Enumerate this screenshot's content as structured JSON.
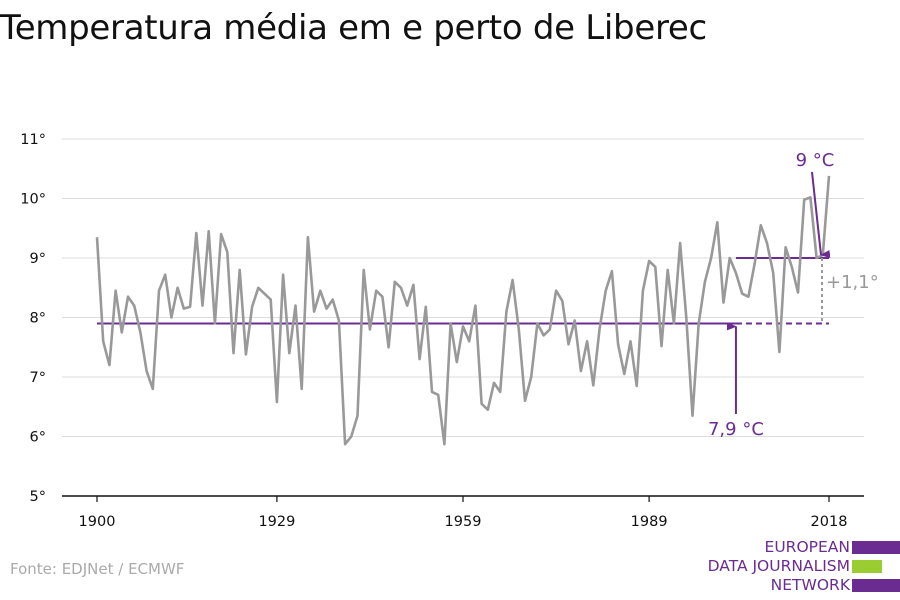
{
  "title": "Temperatura média em e perto de Liberec",
  "source": "Fonte: EDJNet / ECMWF",
  "logo": {
    "lines": [
      "EUROPEAN",
      "DATA JOURNALISM",
      "NETWORK"
    ],
    "colors": [
      "#6b2c91",
      "#9acd32",
      "#6b2c91"
    ]
  },
  "colors": {
    "series": "#999999",
    "accent": "#6b2c91",
    "grid": "#dddddd",
    "axis": "#111111",
    "annotation_gray": "#999999"
  },
  "chart_data": {
    "type": "line",
    "title": "Temperatura média em e perto de Liberec",
    "xlim": [
      1900,
      2018
    ],
    "ylim": [
      5,
      11
    ],
    "x_ticks": [
      1900,
      1929,
      1959,
      1989,
      2018
    ],
    "y_ticks": [
      5,
      6,
      7,
      8,
      9,
      10,
      11
    ],
    "y_tick_labels": [
      "5°",
      "6°",
      "7°",
      "8°",
      "9°",
      "10°",
      "11°"
    ],
    "grid": true,
    "series": [
      {
        "x": [
          1900,
          1901,
          1902,
          1903,
          1904,
          1905,
          1906,
          1907,
          1908,
          1909,
          1910,
          1911,
          1912,
          1913,
          1914,
          1915,
          1916,
          1917,
          1918,
          1919,
          1920,
          1921,
          1922,
          1923,
          1924,
          1925,
          1926,
          1927,
          1928,
          1929,
          1930,
          1931,
          1932,
          1933,
          1934,
          1935,
          1936,
          1937,
          1938,
          1939,
          1940,
          1941,
          1942,
          1943,
          1944,
          1945,
          1946,
          1947,
          1948,
          1949,
          1950,
          1951,
          1952,
          1953,
          1954,
          1955,
          1956,
          1957,
          1958,
          1959,
          1960,
          1961,
          1962,
          1963,
          1964,
          1965,
          1966,
          1967,
          1968,
          1969,
          1970,
          1971,
          1972,
          1973,
          1974,
          1975,
          1976,
          1977,
          1978,
          1979,
          1980,
          1981,
          1982,
          1983,
          1984,
          1985,
          1986,
          1987,
          1988,
          1989,
          1990,
          1991,
          1992,
          1993,
          1994,
          1995,
          1996,
          1997,
          1998,
          1999,
          2000,
          2001,
          2002,
          2003,
          2004,
          2005,
          2006,
          2007,
          2008,
          2009,
          2010,
          2011,
          2012,
          2013,
          2014,
          2015,
          2016,
          2017,
          2018
        ],
        "y": [
          9.35,
          7.6,
          7.2,
          8.45,
          7.75,
          8.35,
          8.2,
          7.75,
          7.1,
          6.8,
          8.45,
          8.72,
          8.0,
          8.5,
          8.15,
          8.18,
          9.42,
          8.2,
          9.45,
          7.9,
          9.4,
          9.1,
          7.4,
          8.8,
          7.38,
          8.18,
          8.5,
          8.4,
          8.3,
          6.58,
          8.72,
          7.4,
          8.2,
          6.8,
          9.35,
          8.1,
          8.45,
          8.15,
          8.3,
          7.95,
          5.87,
          6.0,
          6.35,
          8.8,
          7.8,
          8.45,
          8.35,
          7.5,
          8.6,
          8.5,
          8.2,
          8.55,
          7.3,
          8.18,
          6.75,
          6.7,
          5.87,
          7.9,
          7.25,
          7.85,
          7.6,
          8.2,
          6.55,
          6.45,
          6.9,
          6.75,
          8.1,
          8.63,
          7.8,
          6.6,
          7.0,
          7.9,
          7.7,
          7.8,
          8.45,
          8.28,
          7.55,
          7.95,
          7.1,
          7.6,
          6.86,
          7.8,
          8.45,
          8.78,
          7.55,
          7.05,
          7.6,
          6.85,
          8.45,
          8.95,
          8.85,
          7.52,
          8.8,
          7.9,
          9.25,
          8.0,
          6.35,
          7.9,
          8.6,
          9.0,
          9.6,
          8.25,
          9.0,
          8.75,
          8.4,
          8.35,
          8.9,
          9.55,
          9.25,
          8.75,
          7.42,
          9.18,
          8.85,
          8.42,
          9.98,
          10.02,
          9.0,
          9.05,
          10.38
        ]
      }
    ],
    "annotations": {
      "baseline": {
        "value": 7.9,
        "x_from": 1900,
        "x_to": 2003,
        "x_dashed_to": 2018,
        "label": "7,9 °C",
        "arrow_x": 2003
      },
      "recent": {
        "value": 9.0,
        "x_from": 2003,
        "x_to": 2018,
        "label": "9 °C"
      },
      "difference": {
        "label": "+1,1°",
        "x": 2018
      }
    }
  }
}
